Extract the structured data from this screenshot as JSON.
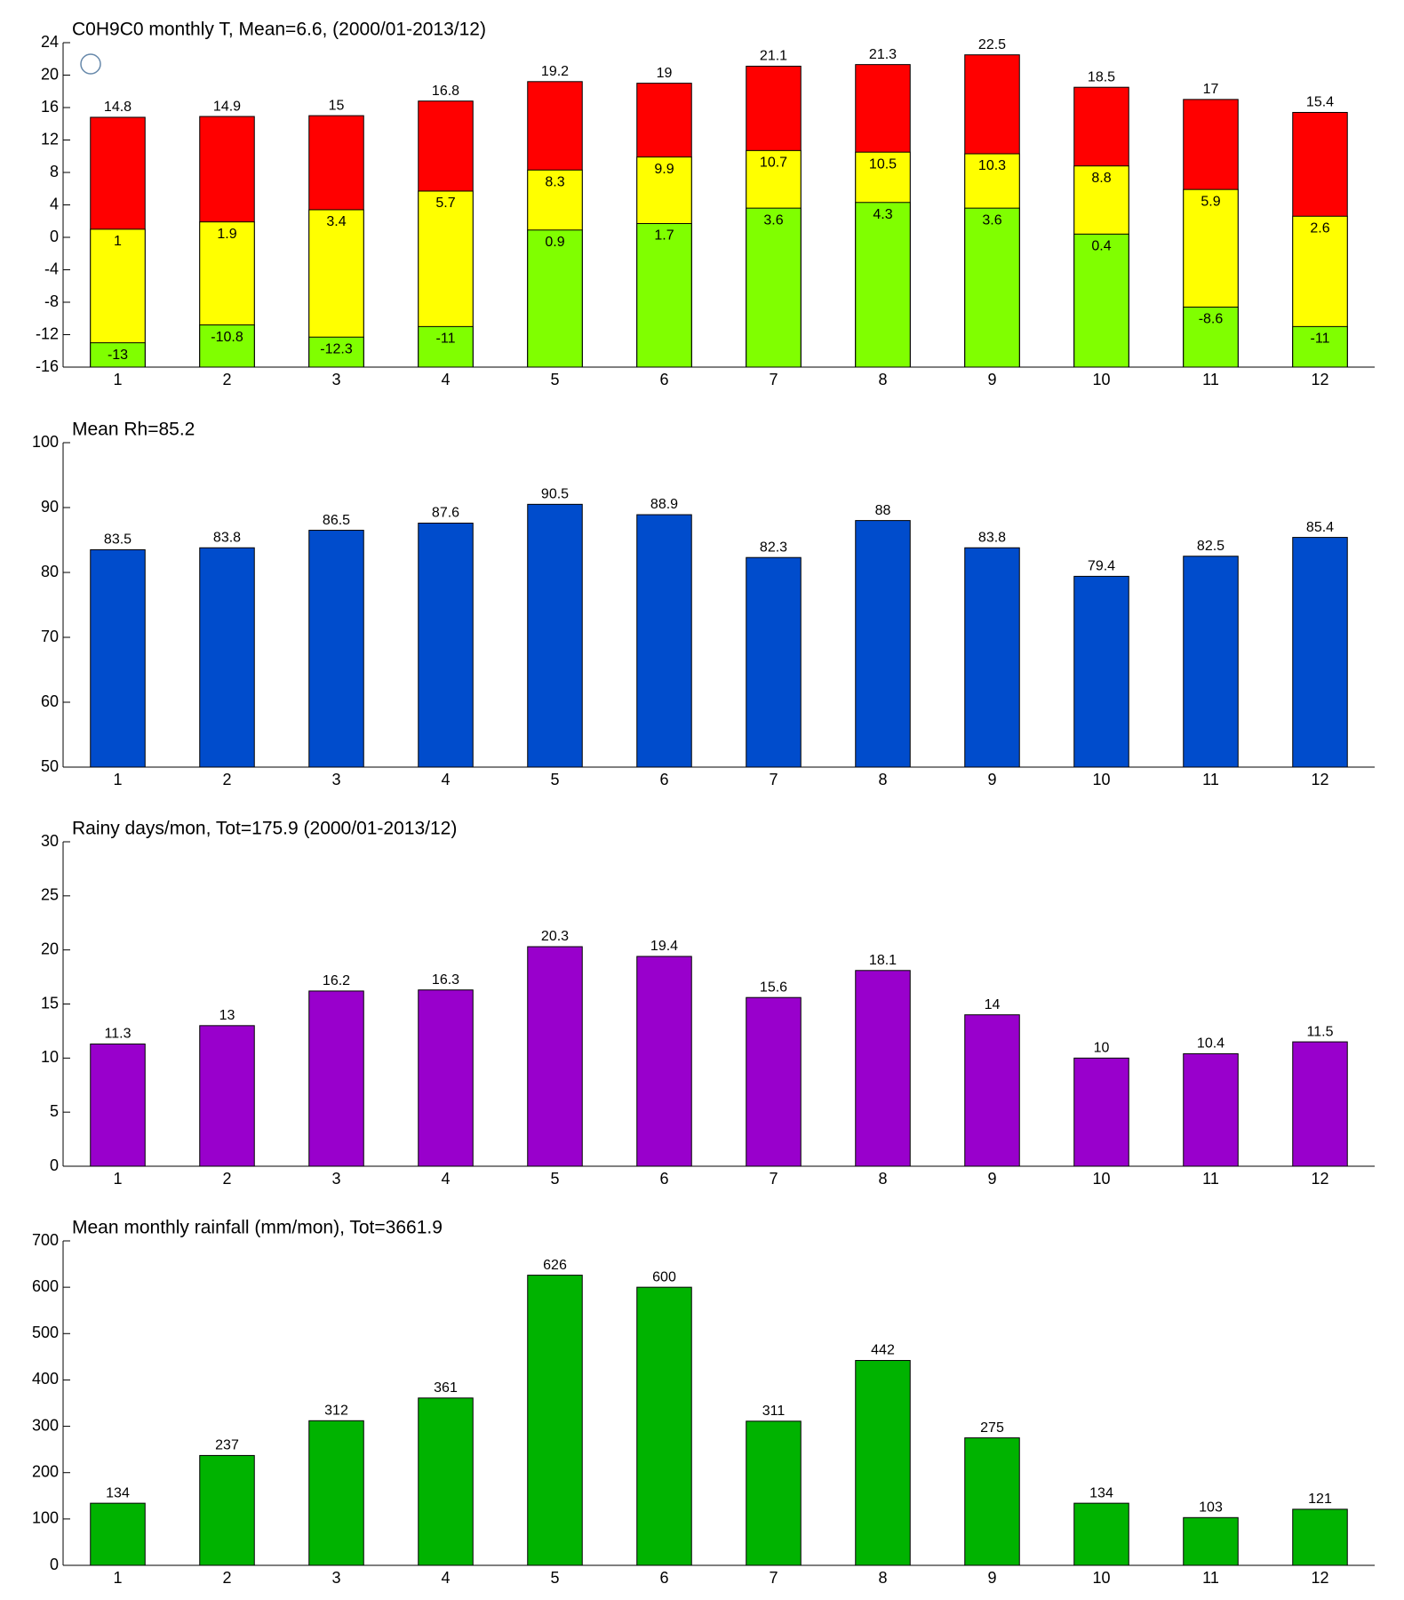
{
  "chart_data": [
    {
      "type": "bar",
      "barmode": "overlay",
      "title": "C0H9C0 monthly T, Mean=6.6, (2000/01-2013/12)",
      "categories": [
        "1",
        "2",
        "3",
        "4",
        "5",
        "6",
        "7",
        "8",
        "9",
        "10",
        "11",
        "12"
      ],
      "series": [
        {
          "color": "#ff0000",
          "values": [
            14.8,
            14.9,
            15,
            16.8,
            19.2,
            19,
            21.1,
            21.3,
            22.5,
            18.5,
            17,
            15.4
          ]
        },
        {
          "color": "#ffff00",
          "values": [
            1,
            1.9,
            3.4,
            5.7,
            8.3,
            9.9,
            10.7,
            10.5,
            10.3,
            8.8,
            5.9,
            2.6
          ]
        },
        {
          "color": "#80ff00",
          "values": [
            -13,
            -10.8,
            -12.3,
            -11,
            0.9,
            1.7,
            3.6,
            4.3,
            3.6,
            0.4,
            -8.6,
            -11
          ]
        }
      ],
      "ylim": [
        -16,
        24
      ],
      "yticks": [
        -16,
        -12,
        -8,
        -4,
        0,
        4,
        8,
        12,
        16,
        20,
        24
      ]
    },
    {
      "type": "bar",
      "title": "Mean Rh=85.2",
      "categories": [
        "1",
        "2",
        "3",
        "4",
        "5",
        "6",
        "7",
        "8",
        "9",
        "10",
        "11",
        "12"
      ],
      "series": [
        {
          "color": "#004ccc",
          "values": [
            83.5,
            83.8,
            86.5,
            87.6,
            90.5,
            88.9,
            82.3,
            88,
            83.8,
            79.4,
            82.5,
            85.4
          ]
        }
      ],
      "ylim": [
        50,
        100
      ],
      "yticks": [
        50,
        60,
        70,
        80,
        90,
        100
      ]
    },
    {
      "type": "bar",
      "title": "Rainy days/mon, Tot=175.9 (2000/01-2013/12)",
      "categories": [
        "1",
        "2",
        "3",
        "4",
        "5",
        "6",
        "7",
        "8",
        "9",
        "10",
        "11",
        "12"
      ],
      "series": [
        {
          "color": "#9900cc",
          "values": [
            11.3,
            13,
            16.2,
            16.3,
            20.3,
            19.4,
            15.6,
            18.1,
            14,
            10,
            10.4,
            11.5
          ]
        }
      ],
      "ylim": [
        0,
        30
      ],
      "yticks": [
        0,
        5,
        10,
        15,
        20,
        25,
        30
      ]
    },
    {
      "type": "bar",
      "title": "Mean monthly rainfall (mm/mon), Tot=3661.9",
      "categories": [
        "1",
        "2",
        "3",
        "4",
        "5",
        "6",
        "7",
        "8",
        "9",
        "10",
        "11",
        "12"
      ],
      "series": [
        {
          "color": "#00b300",
          "values": [
            134,
            237,
            312,
            361,
            626,
            600,
            311,
            442,
            275,
            134,
            103,
            121
          ]
        }
      ],
      "ylim": [
        0,
        700
      ],
      "yticks": [
        0,
        100,
        200,
        300,
        400,
        500,
        600,
        700
      ]
    }
  ]
}
